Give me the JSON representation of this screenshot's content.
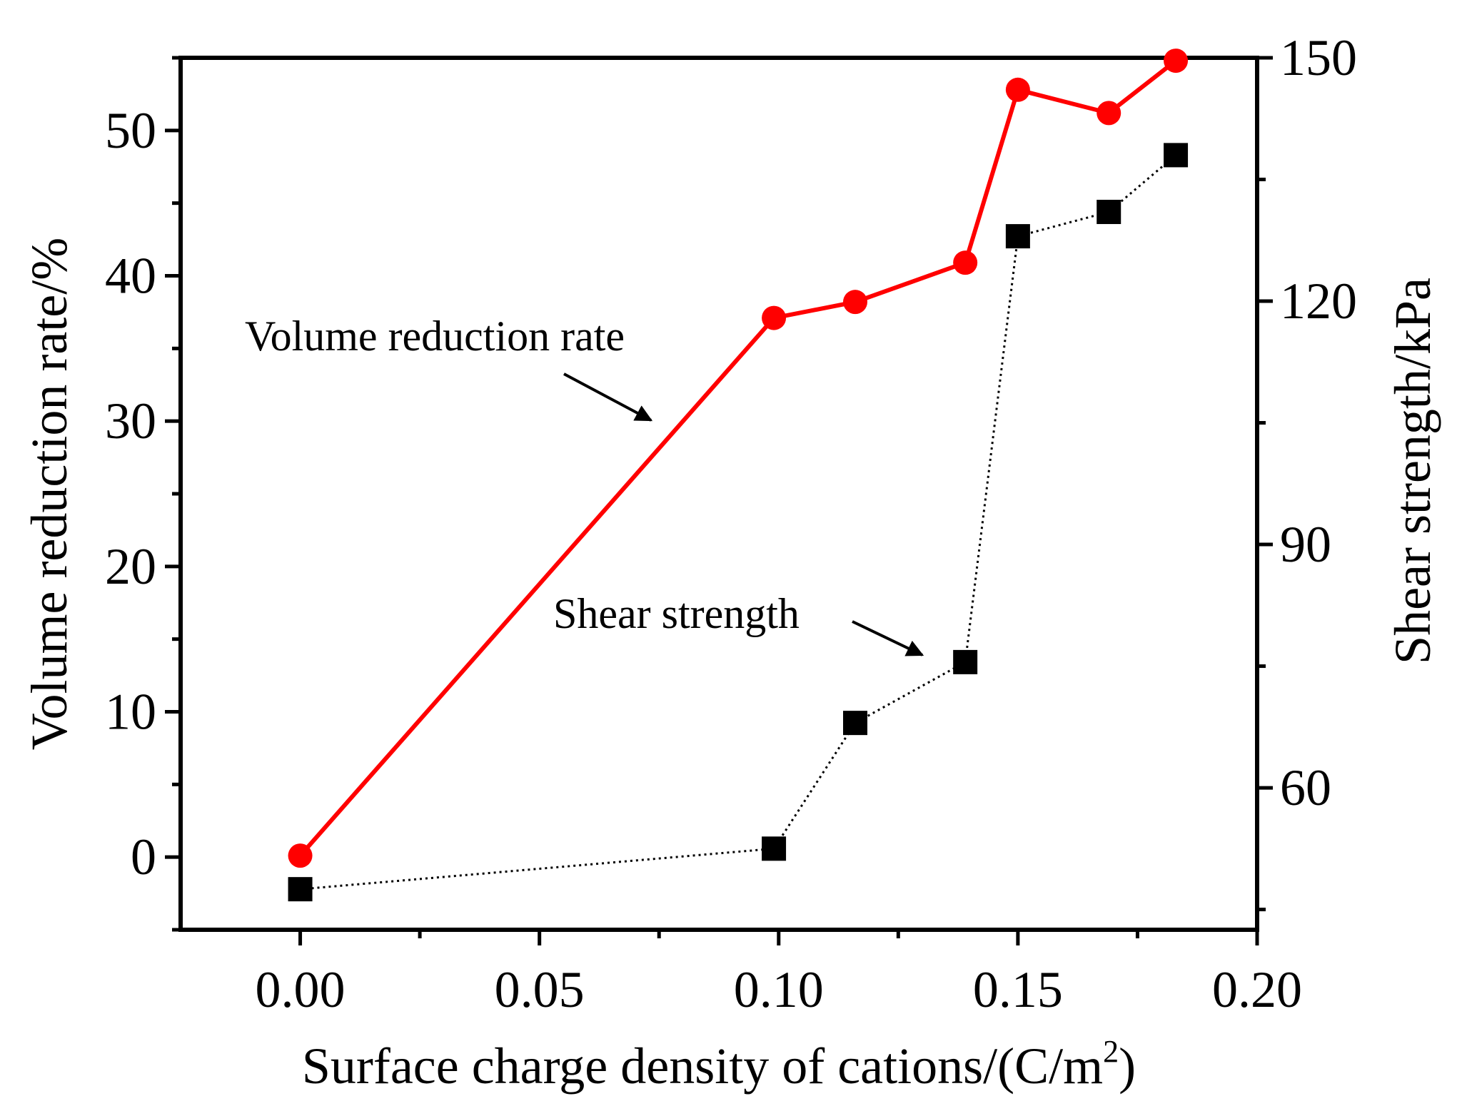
{
  "chart_data": {
    "type": "line",
    "xlabel": "Surface charge density of cations/(C/m",
    "xlabel_sup": "2",
    "xlabel_end": ")",
    "ylabel_left": "Volume reduction rate/%",
    "ylabel_right": "Shear strength/kPa",
    "xlim": [
      -0.025,
      0.2
    ],
    "ylim_left": [
      -5,
      55
    ],
    "ylim_right": [
      42.5,
      150
    ],
    "x_ticks": [
      {
        "value": 0.0,
        "label": "0.00"
      },
      {
        "value": 0.05,
        "label": "0.05"
      },
      {
        "value": 0.1,
        "label": "0.10"
      },
      {
        "value": 0.15,
        "label": "0.15"
      },
      {
        "value": 0.2,
        "label": "0.20"
      }
    ],
    "y_left_ticks": [
      {
        "value": 0,
        "label": "0"
      },
      {
        "value": 10,
        "label": "10"
      },
      {
        "value": 20,
        "label": "20"
      },
      {
        "value": 30,
        "label": "30"
      },
      {
        "value": 40,
        "label": "40"
      },
      {
        "value": 50,
        "label": "50"
      }
    ],
    "y_right_ticks": [
      {
        "value": 60,
        "label": "60"
      },
      {
        "value": 90,
        "label": "90"
      },
      {
        "value": 120,
        "label": "120"
      },
      {
        "value": 150,
        "label": "150"
      }
    ],
    "series": [
      {
        "name": "Volume reduction rate",
        "axis": "left",
        "color": "#ff0000",
        "marker": "circle",
        "line": "solid",
        "x": [
          0.0,
          0.099,
          0.116,
          0.139,
          0.15,
          0.169,
          0.183
        ],
        "values": [
          0.1,
          37.1,
          38.2,
          40.9,
          52.8,
          51.2,
          54.8
        ]
      },
      {
        "name": "Shear strength",
        "axis": "right",
        "color": "#000000",
        "marker": "square",
        "line": "dotted",
        "x": [
          0.0,
          0.099,
          0.116,
          0.139,
          0.15,
          0.169,
          0.183
        ],
        "values": [
          47.5,
          52.5,
          68.0,
          75.5,
          128.0,
          131.0,
          138.0
        ]
      }
    ],
    "annotations": [
      {
        "text": "Volume reduction rate",
        "series": "Volume reduction rate"
      },
      {
        "text": "Shear strength",
        "series": "Shear strength"
      }
    ],
    "grid": false,
    "legend": "none"
  }
}
